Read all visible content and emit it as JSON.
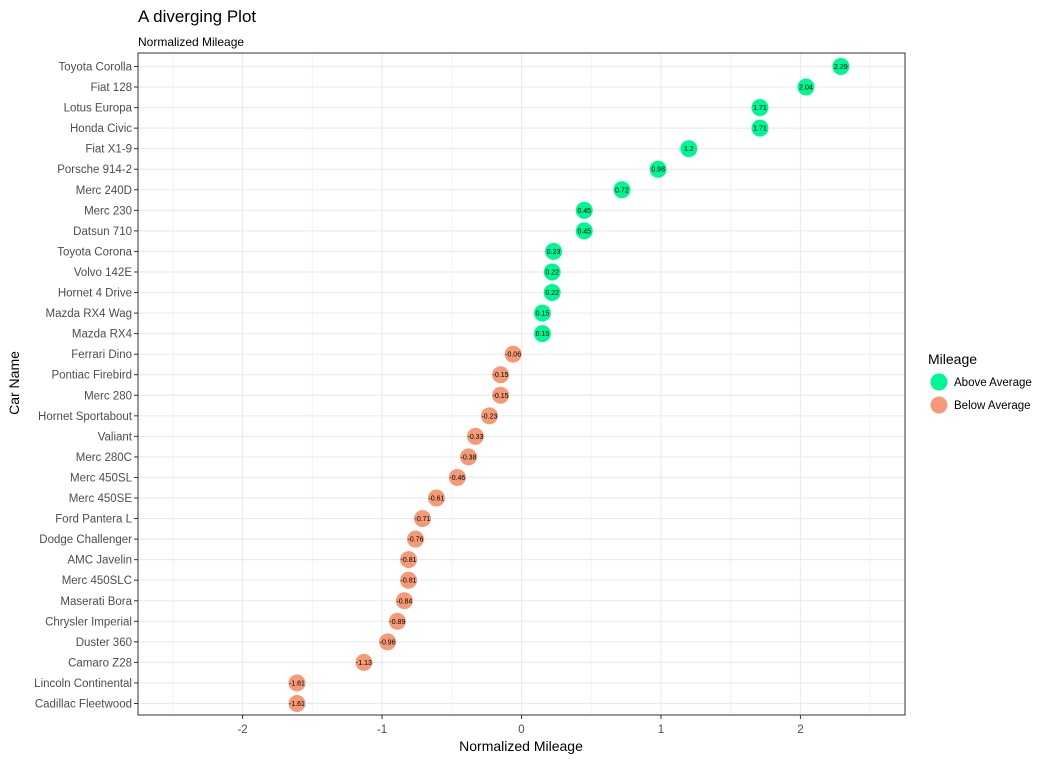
{
  "chart_data": {
    "type": "scatter",
    "title": "A diverging Plot",
    "subtitle": "Normalized Mileage",
    "xlabel": "Normalized Mileage",
    "ylabel": "Car Name",
    "xlim": [
      -2.75,
      2.75
    ],
    "x_ticks": [
      "-2",
      "-1",
      "0",
      "1",
      "2"
    ],
    "x_tick_values": [
      -2,
      -1,
      0,
      1,
      2
    ],
    "grid": true,
    "legend": {
      "title": "Mileage",
      "placement": "right",
      "entries": [
        {
          "label": "Above Average",
          "color": "#00F593"
        },
        {
          "label": "Below Average",
          "color": "#F59A78"
        }
      ]
    },
    "points": [
      {
        "name": "Toyota Corolla",
        "value": 2.29,
        "label": "2.29",
        "group": 0
      },
      {
        "name": "Fiat 128",
        "value": 2.04,
        "label": "2.04",
        "group": 0
      },
      {
        "name": "Lotus Europa",
        "value": 1.71,
        "label": "1.71",
        "group": 0
      },
      {
        "name": "Honda Civic",
        "value": 1.71,
        "label": "1.71",
        "group": 0
      },
      {
        "name": "Fiat X1-9",
        "value": 1.2,
        "label": "1.2",
        "group": 0
      },
      {
        "name": "Porsche 914-2",
        "value": 0.98,
        "label": "0.98",
        "group": 0
      },
      {
        "name": "Merc 240D",
        "value": 0.72,
        "label": "0.72",
        "group": 0
      },
      {
        "name": "Merc 230",
        "value": 0.45,
        "label": "0.45",
        "group": 0
      },
      {
        "name": "Datsun 710",
        "value": 0.45,
        "label": "0.45",
        "group": 0
      },
      {
        "name": "Toyota Corona",
        "value": 0.23,
        "label": "0.23",
        "group": 0
      },
      {
        "name": "Volvo 142E",
        "value": 0.22,
        "label": "0.22",
        "group": 0
      },
      {
        "name": "Hornet 4 Drive",
        "value": 0.22,
        "label": "0.22",
        "group": 0
      },
      {
        "name": "Mazda RX4 Wag",
        "value": 0.15,
        "label": "0.15",
        "group": 0
      },
      {
        "name": "Mazda RX4",
        "value": 0.15,
        "label": "0.15",
        "group": 0
      },
      {
        "name": "Ferrari Dino",
        "value": -0.06,
        "label": "-0.06",
        "group": 1
      },
      {
        "name": "Pontiac Firebird",
        "value": -0.15,
        "label": "-0.15",
        "group": 1
      },
      {
        "name": "Merc 280",
        "value": -0.15,
        "label": "-0.15",
        "group": 1
      },
      {
        "name": "Hornet Sportabout",
        "value": -0.23,
        "label": "-0.23",
        "group": 1
      },
      {
        "name": "Valiant",
        "value": -0.33,
        "label": "-0.33",
        "group": 1
      },
      {
        "name": "Merc 280C",
        "value": -0.38,
        "label": "-0.38",
        "group": 1
      },
      {
        "name": "Merc 450SL",
        "value": -0.46,
        "label": "-0.46",
        "group": 1
      },
      {
        "name": "Merc 450SE",
        "value": -0.61,
        "label": "-0.61",
        "group": 1
      },
      {
        "name": "Ford Pantera L",
        "value": -0.71,
        "label": "-0.71",
        "group": 1
      },
      {
        "name": "Dodge Challenger",
        "value": -0.76,
        "label": "-0.76",
        "group": 1
      },
      {
        "name": "AMC Javelin",
        "value": -0.81,
        "label": "-0.81",
        "group": 1
      },
      {
        "name": "Merc 450SLC",
        "value": -0.81,
        "label": "-0.81",
        "group": 1
      },
      {
        "name": "Maserati Bora",
        "value": -0.84,
        "label": "-0.84",
        "group": 1
      },
      {
        "name": "Chrysler Imperial",
        "value": -0.89,
        "label": "-0.89",
        "group": 1
      },
      {
        "name": "Duster 360",
        "value": -0.96,
        "label": "-0.96",
        "group": 1
      },
      {
        "name": "Camaro Z28",
        "value": -1.13,
        "label": "-1.13",
        "group": 1
      },
      {
        "name": "Lincoln Continental",
        "value": -1.61,
        "label": "-1.61",
        "group": 1
      },
      {
        "name": "Cadillac Fleetwood",
        "value": -1.61,
        "label": "-1.61",
        "group": 1
      }
    ]
  }
}
